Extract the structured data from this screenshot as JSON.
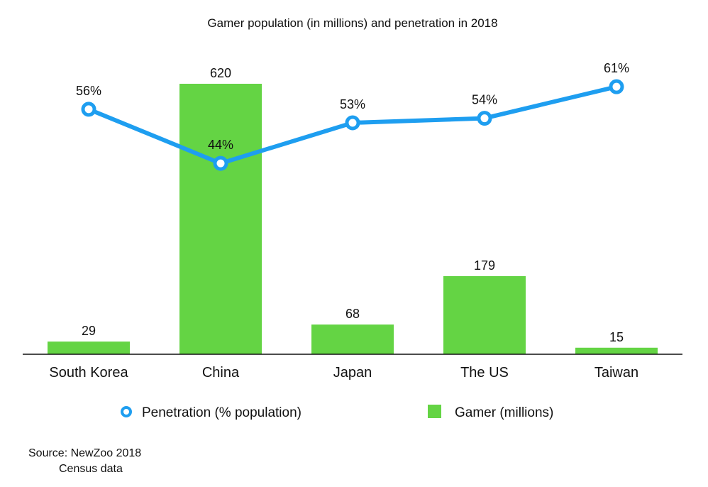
{
  "chart_data": {
    "type": "bar+line",
    "title": "Gamer population (in millions) and penetration in 2018",
    "categories": [
      "South Korea",
      "China",
      "Japan",
      "The US",
      "Taiwan"
    ],
    "series": [
      {
        "name": "Gamer (millions)",
        "type": "bar",
        "values": [
          29,
          620,
          68,
          179,
          15
        ],
        "labels": [
          "29",
          "620",
          "68",
          "179",
          "15"
        ],
        "color": "#64d444"
      },
      {
        "name": "Penetration (% population)",
        "type": "line",
        "values": [
          56,
          44,
          53,
          54,
          61
        ],
        "labels": [
          "56%",
          "44%",
          "53%",
          "54%",
          "61%"
        ],
        "color": "#1e9ef0"
      }
    ],
    "legend": "bottom",
    "grid": false,
    "source": [
      "Source: NewZoo 2018",
      "Census data"
    ]
  }
}
